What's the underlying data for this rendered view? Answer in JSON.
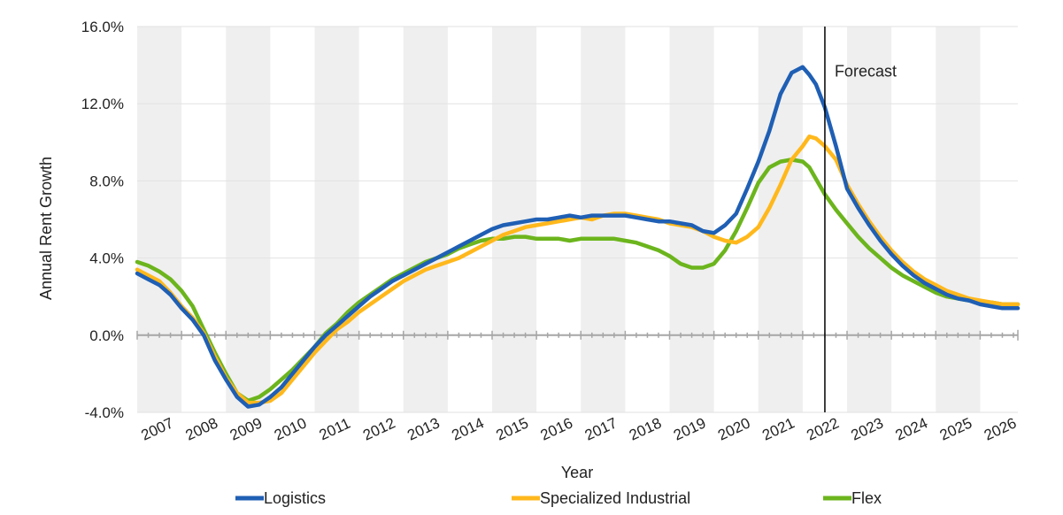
{
  "chart_data": {
    "type": "line",
    "title": "",
    "xlabel": "Year",
    "ylabel": "Annual Rent Growth",
    "ylim": [
      -4.0,
      16.0
    ],
    "y_ticks": [
      -4.0,
      0.0,
      4.0,
      8.0,
      12.0,
      16.0
    ],
    "y_tick_labels": [
      "-4.0%",
      "0.0%",
      "4.0%",
      "8.0%",
      "12.0%",
      "16.0%"
    ],
    "x_range": [
      2007,
      2026.85
    ],
    "x_tick_labels": [
      "2007",
      "2008",
      "2009",
      "2010",
      "2011",
      "2012",
      "2013",
      "2014",
      "2015",
      "2016",
      "2017",
      "2018",
      "2019",
      "2020",
      "2021",
      "2022",
      "2023",
      "2024",
      "2025",
      "2026"
    ],
    "alternating_year_shading": true,
    "legend_position": "bottom",
    "annotation": {
      "label": "Forecast",
      "x": 2022.5
    },
    "series": [
      {
        "name": "Logistics",
        "color": "#1f5fb4",
        "x": [
          2007,
          2007.25,
          2007.5,
          2007.75,
          2008,
          2008.25,
          2008.5,
          2008.75,
          2009,
          2009.25,
          2009.5,
          2009.75,
          2010,
          2010.25,
          2010.5,
          2010.75,
          2011,
          2011.25,
          2011.5,
          2011.75,
          2012,
          2012.25,
          2012.5,
          2012.75,
          2013,
          2013.25,
          2013.5,
          2013.75,
          2014,
          2014.25,
          2014.5,
          2014.75,
          2015,
          2015.25,
          2015.5,
          2015.75,
          2016,
          2016.25,
          2016.5,
          2016.75,
          2017,
          2017.25,
          2017.5,
          2017.75,
          2018,
          2018.25,
          2018.5,
          2018.75,
          2019,
          2019.25,
          2019.5,
          2019.75,
          2020,
          2020.25,
          2020.5,
          2020.75,
          2021,
          2021.25,
          2021.5,
          2021.75,
          2022,
          2022.15,
          2022.3,
          2022.5,
          2022.75,
          2023,
          2023.25,
          2023.5,
          2023.75,
          2024,
          2024.25,
          2024.5,
          2024.75,
          2025,
          2025.25,
          2025.5,
          2025.75,
          2026,
          2026.25,
          2026.5,
          2026.85
        ],
        "values": [
          3.2,
          2.9,
          2.6,
          2.1,
          1.4,
          0.8,
          0.0,
          -1.3,
          -2.3,
          -3.2,
          -3.7,
          -3.6,
          -3.2,
          -2.7,
          -2.0,
          -1.3,
          -0.6,
          0.0,
          0.5,
          1.0,
          1.5,
          2.0,
          2.4,
          2.8,
          3.1,
          3.4,
          3.7,
          4.0,
          4.3,
          4.6,
          4.9,
          5.2,
          5.5,
          5.7,
          5.8,
          5.9,
          6.0,
          6.0,
          6.1,
          6.2,
          6.1,
          6.2,
          6.2,
          6.2,
          6.2,
          6.1,
          6.0,
          5.9,
          5.9,
          5.8,
          5.7,
          5.4,
          5.3,
          5.7,
          6.3,
          7.6,
          9.0,
          10.6,
          12.5,
          13.6,
          13.9,
          13.5,
          13.0,
          11.8,
          9.8,
          7.6,
          6.6,
          5.7,
          4.9,
          4.2,
          3.6,
          3.1,
          2.7,
          2.4,
          2.1,
          1.9,
          1.8,
          1.6,
          1.5,
          1.4,
          1.4
        ]
      },
      {
        "name": "Specialized Industrial",
        "color": "#ffb81c",
        "x": [
          2007,
          2007.25,
          2007.5,
          2007.75,
          2008,
          2008.25,
          2008.5,
          2008.75,
          2009,
          2009.25,
          2009.5,
          2009.75,
          2010,
          2010.25,
          2010.5,
          2010.75,
          2011,
          2011.25,
          2011.5,
          2011.75,
          2012,
          2012.25,
          2012.5,
          2012.75,
          2013,
          2013.25,
          2013.5,
          2013.75,
          2014,
          2014.25,
          2014.5,
          2014.75,
          2015,
          2015.25,
          2015.5,
          2015.75,
          2016,
          2016.25,
          2016.5,
          2016.75,
          2017,
          2017.25,
          2017.5,
          2017.75,
          2018,
          2018.25,
          2018.5,
          2018.75,
          2019,
          2019.25,
          2019.5,
          2019.75,
          2020,
          2020.25,
          2020.5,
          2020.75,
          2021,
          2021.25,
          2021.5,
          2021.75,
          2022,
          2022.15,
          2022.3,
          2022.5,
          2022.75,
          2023,
          2023.25,
          2023.5,
          2023.75,
          2024,
          2024.25,
          2024.5,
          2024.75,
          2025,
          2025.25,
          2025.5,
          2025.75,
          2026,
          2026.25,
          2026.5,
          2026.85
        ],
        "values": [
          3.4,
          3.1,
          2.8,
          2.2,
          1.5,
          0.9,
          0.1,
          -1.1,
          -2.2,
          -3.0,
          -3.5,
          -3.5,
          -3.4,
          -3.0,
          -2.3,
          -1.6,
          -0.9,
          -0.3,
          0.3,
          0.7,
          1.2,
          1.6,
          2.0,
          2.4,
          2.8,
          3.1,
          3.4,
          3.6,
          3.8,
          4.0,
          4.3,
          4.6,
          4.9,
          5.2,
          5.4,
          5.6,
          5.7,
          5.8,
          5.9,
          6.0,
          6.1,
          6.0,
          6.2,
          6.3,
          6.3,
          6.2,
          6.1,
          6.0,
          5.8,
          5.7,
          5.6,
          5.4,
          5.1,
          4.9,
          4.8,
          5.1,
          5.6,
          6.6,
          7.8,
          9.1,
          9.8,
          10.3,
          10.2,
          9.8,
          9.1,
          7.8,
          6.8,
          5.9,
          5.1,
          4.4,
          3.8,
          3.3,
          2.9,
          2.6,
          2.3,
          2.1,
          1.9,
          1.8,
          1.7,
          1.6,
          1.6
        ]
      },
      {
        "name": "Flex",
        "color": "#6cb51d",
        "x": [
          2007,
          2007.25,
          2007.5,
          2007.75,
          2008,
          2008.25,
          2008.5,
          2008.75,
          2009,
          2009.25,
          2009.5,
          2009.75,
          2010,
          2010.25,
          2010.5,
          2010.75,
          2011,
          2011.25,
          2011.5,
          2011.75,
          2012,
          2012.25,
          2012.5,
          2012.75,
          2013,
          2013.25,
          2013.5,
          2013.75,
          2014,
          2014.25,
          2014.5,
          2014.75,
          2015,
          2015.25,
          2015.5,
          2015.75,
          2016,
          2016.25,
          2016.5,
          2016.75,
          2017,
          2017.25,
          2017.5,
          2017.75,
          2018,
          2018.25,
          2018.5,
          2018.75,
          2019,
          2019.25,
          2019.5,
          2019.75,
          2020,
          2020.25,
          2020.5,
          2020.75,
          2021,
          2021.25,
          2021.5,
          2021.75,
          2022,
          2022.15,
          2022.3,
          2022.5,
          2022.75,
          2023,
          2023.25,
          2023.5,
          2023.75,
          2024,
          2024.25,
          2024.5,
          2024.75,
          2025,
          2025.25,
          2025.5,
          2025.75,
          2026,
          2026.25,
          2026.5,
          2026.85
        ],
        "values": [
          3.8,
          3.6,
          3.3,
          2.9,
          2.3,
          1.5,
          0.3,
          -0.9,
          -2.0,
          -3.0,
          -3.4,
          -3.2,
          -2.8,
          -2.3,
          -1.8,
          -1.2,
          -0.6,
          0.1,
          0.6,
          1.2,
          1.7,
          2.1,
          2.5,
          2.9,
          3.2,
          3.5,
          3.8,
          4.0,
          4.2,
          4.5,
          4.7,
          4.9,
          5.0,
          5.0,
          5.1,
          5.1,
          5.0,
          5.0,
          5.0,
          4.9,
          5.0,
          5.0,
          5.0,
          5.0,
          4.9,
          4.8,
          4.6,
          4.4,
          4.1,
          3.7,
          3.5,
          3.5,
          3.7,
          4.4,
          5.4,
          6.6,
          7.9,
          8.7,
          9.0,
          9.1,
          9.0,
          8.7,
          8.1,
          7.3,
          6.5,
          5.8,
          5.1,
          4.5,
          4.0,
          3.5,
          3.1,
          2.8,
          2.5,
          2.2,
          2.0,
          1.9,
          1.8,
          1.7,
          1.7,
          1.6,
          1.6
        ]
      }
    ]
  }
}
